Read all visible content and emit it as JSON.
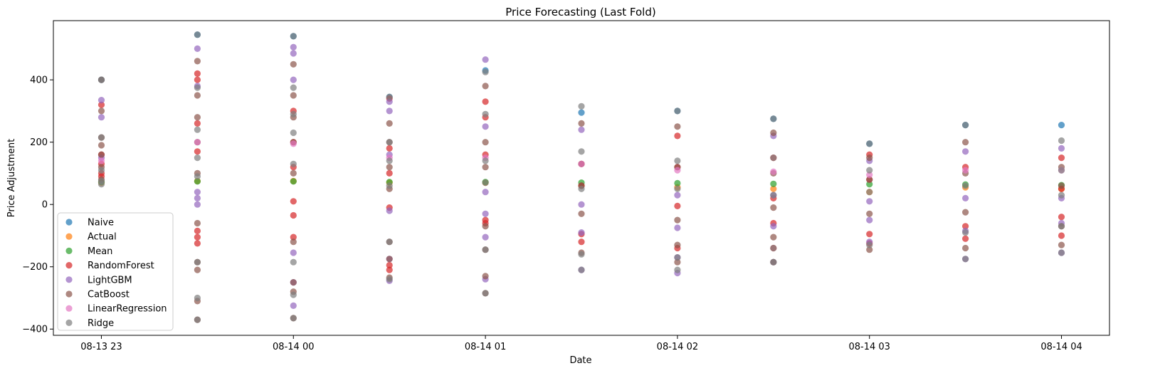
{
  "chart_data": {
    "type": "scatter",
    "title": "Price Forecasting (Last Fold)",
    "xlabel": "Date",
    "ylabel": "Price Adjustment",
    "x_ticks": [
      "08-13 23",
      "08-14 00",
      "08-14 01",
      "08-14 02",
      "08-14 03",
      "08-14 04"
    ],
    "x_tick_values": [
      0,
      60,
      120,
      180,
      240,
      300
    ],
    "xlim": [
      -15,
      315
    ],
    "ylim": [
      -420,
      590
    ],
    "y_ticks": [
      -400,
      -200,
      0,
      200,
      400
    ],
    "legend_position": "lower-left",
    "grid": false,
    "series": [
      {
        "name": "Naive",
        "color": "#1f77b4",
        "x": [
          0,
          30,
          60,
          90,
          120,
          150,
          180,
          210,
          240,
          270,
          300
        ],
        "y": [
          400,
          545,
          540,
          345,
          430,
          295,
          300,
          275,
          195,
          255,
          255
        ]
      },
      {
        "name": "Actual",
        "color": "#ff7f0e",
        "x": [
          0,
          30,
          60,
          90,
          120,
          150,
          180,
          210,
          240,
          270,
          300
        ],
        "y": [
          70,
          75,
          75,
          70,
          70,
          60,
          55,
          50,
          40,
          55,
          50
        ]
      },
      {
        "name": "Mean",
        "color": "#2ca02c",
        "x": [
          0,
          30,
          60,
          90,
          120,
          150,
          180,
          210,
          240,
          270,
          300
        ],
        "y": [
          72,
          74,
          74,
          72,
          72,
          70,
          68,
          66,
          65,
          64,
          62
        ]
      },
      {
        "name": "RandomForest",
        "color": "#d62728",
        "x": [
          0,
          0,
          0,
          0,
          0,
          30,
          30,
          30,
          30,
          30,
          30,
          30,
          60,
          60,
          60,
          60,
          60,
          60,
          90,
          90,
          90,
          90,
          90,
          90,
          120,
          120,
          120,
          120,
          120,
          150,
          150,
          150,
          150,
          180,
          180,
          180,
          180,
          210,
          210,
          210,
          210,
          240,
          240,
          240,
          240,
          270,
          270,
          270,
          300,
          300,
          300,
          300
        ],
        "y": [
          90,
          100,
          130,
          160,
          320,
          -125,
          -105,
          -85,
          170,
          260,
          400,
          420,
          -105,
          -35,
          10,
          120,
          200,
          300,
          -210,
          -195,
          -10,
          100,
          180,
          340,
          -60,
          -50,
          160,
          280,
          330,
          -120,
          -95,
          60,
          130,
          -140,
          -5,
          120,
          220,
          -140,
          -60,
          20,
          150,
          -125,
          -95,
          80,
          160,
          -110,
          -70,
          120,
          -100,
          -40,
          50,
          150
        ]
      },
      {
        "name": "LightGBM",
        "color": "#9467bd",
        "x": [
          0,
          0,
          0,
          30,
          30,
          30,
          30,
          30,
          60,
          60,
          60,
          60,
          60,
          60,
          90,
          90,
          90,
          90,
          90,
          90,
          120,
          120,
          120,
          120,
          120,
          120,
          150,
          150,
          150,
          150,
          180,
          180,
          180,
          180,
          210,
          210,
          210,
          210,
          240,
          240,
          240,
          240,
          270,
          270,
          270,
          270,
          300,
          300,
          300,
          300
        ],
        "y": [
          150,
          280,
          335,
          0,
          20,
          40,
          380,
          500,
          -325,
          -250,
          -155,
          400,
          485,
          505,
          -245,
          -175,
          -20,
          160,
          300,
          330,
          -240,
          -105,
          -30,
          40,
          250,
          465,
          -210,
          -90,
          0,
          240,
          -220,
          -170,
          -75,
          30,
          -185,
          -70,
          30,
          220,
          -120,
          -50,
          10,
          140,
          -175,
          -85,
          20,
          170,
          -155,
          -60,
          20,
          180
        ]
      },
      {
        "name": "CatBoost",
        "color": "#8c564b",
        "x": [
          0,
          0,
          0,
          0,
          0,
          0,
          0,
          30,
          30,
          30,
          30,
          30,
          30,
          30,
          30,
          30,
          30,
          60,
          60,
          60,
          60,
          60,
          60,
          60,
          60,
          60,
          90,
          90,
          90,
          90,
          90,
          90,
          90,
          120,
          120,
          120,
          120,
          120,
          120,
          120,
          150,
          150,
          150,
          150,
          150,
          180,
          180,
          180,
          180,
          180,
          210,
          210,
          210,
          210,
          210,
          240,
          240,
          240,
          240,
          270,
          270,
          270,
          270,
          300,
          300,
          300,
          300
        ],
        "y": [
          80,
          120,
          160,
          190,
          215,
          300,
          400,
          -370,
          -310,
          -210,
          -185,
          -60,
          100,
          200,
          280,
          350,
          460,
          -365,
          -280,
          -250,
          -120,
          100,
          200,
          280,
          350,
          450,
          -235,
          -175,
          -120,
          50,
          120,
          200,
          260,
          -285,
          -230,
          -145,
          -70,
          120,
          200,
          380,
          -155,
          -30,
          60,
          130,
          260,
          -185,
          -130,
          -50,
          120,
          250,
          -185,
          -105,
          -10,
          100,
          230,
          -145,
          -30,
          80,
          150,
          -140,
          -25,
          100,
          200,
          -130,
          -70,
          60,
          120
        ]
      },
      {
        "name": "LinearRegression",
        "color": "#e377c2",
        "x": [
          0,
          30,
          60,
          90,
          120,
          150,
          180,
          210,
          240,
          270,
          300
        ],
        "y": [
          140,
          200,
          195,
          150,
          150,
          130,
          110,
          105,
          95,
          110,
          110
        ]
      },
      {
        "name": "Ridge",
        "color": "#7f7f7f",
        "x": [
          0,
          0,
          0,
          0,
          0,
          30,
          30,
          30,
          30,
          30,
          30,
          30,
          30,
          60,
          60,
          60,
          60,
          60,
          60,
          60,
          60,
          90,
          90,
          90,
          90,
          90,
          90,
          120,
          120,
          120,
          120,
          120,
          120,
          150,
          150,
          150,
          150,
          150,
          180,
          180,
          180,
          180,
          180,
          210,
          210,
          210,
          210,
          210,
          240,
          240,
          240,
          240,
          270,
          270,
          270,
          270,
          300,
          300,
          300,
          300,
          300
        ],
        "y": [
          65,
          75,
          110,
          215,
          400,
          -370,
          -300,
          -185,
          90,
          150,
          240,
          375,
          545,
          -365,
          -290,
          -185,
          130,
          230,
          290,
          375,
          540,
          -240,
          -120,
          60,
          140,
          200,
          345,
          -285,
          -145,
          70,
          140,
          290,
          425,
          -210,
          -160,
          50,
          170,
          315,
          -210,
          -170,
          50,
          140,
          300,
          -185,
          -140,
          30,
          150,
          275,
          -130,
          40,
          110,
          195,
          -175,
          -90,
          60,
          255,
          -155,
          -70,
          30,
          110,
          205
        ]
      }
    ]
  }
}
